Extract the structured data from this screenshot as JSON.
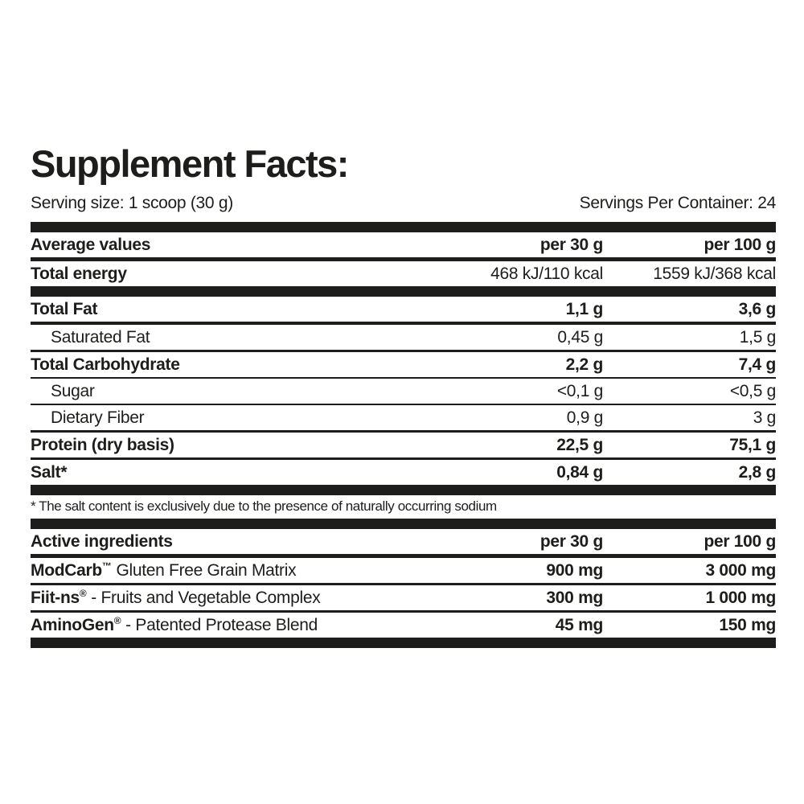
{
  "label": {
    "title": "Supplement Facts:",
    "serving_size": "Serving size: 1 scoop (30 g)",
    "servings_per_container": "Servings Per Container: 24",
    "footnote": "* The salt content is exclusively due to the presence of naturally occurring sodium",
    "text_color": "#1d1d1b"
  },
  "nutrition_table": {
    "header": {
      "label": "Average values",
      "col_30g": "per 30 g",
      "col_100g": "per 100 g"
    },
    "rows": [
      {
        "label": "Total energy",
        "style": "main",
        "bold_values": false,
        "per_30g": "468 kJ/110 kcal",
        "per_100g": "1559 kJ/368 kcal",
        "separator_after": "heavy"
      },
      {
        "label": "Total Fat",
        "style": "main",
        "bold_values": true,
        "per_30g": "1,1 g",
        "per_100g": "3,6 g",
        "separator_after": "strong"
      },
      {
        "label": "Saturated Fat",
        "style": "sub",
        "bold_values": false,
        "per_30g": "0,45 g",
        "per_100g": "1,5 g",
        "separator_after": "medium"
      },
      {
        "label": "Total Carbohydrate",
        "style": "main",
        "bold_values": true,
        "per_30g": "2,2 g",
        "per_100g": "7,4 g",
        "separator_after": "light"
      },
      {
        "label": "Sugar",
        "style": "sub",
        "bold_values": false,
        "per_30g": "<0,1 g",
        "per_100g": "<0,5 g",
        "separator_after": "light"
      },
      {
        "label": "Dietary Fiber",
        "style": "sub",
        "bold_values": false,
        "per_30g": "0,9 g",
        "per_100g": "3 g",
        "separator_after": "medium"
      },
      {
        "label": "Protein (dry basis)",
        "style": "main",
        "bold_values": true,
        "per_30g": "22,5 g",
        "per_100g": "75,1 g",
        "separator_after": "medium"
      },
      {
        "label": "Salt*",
        "style": "main",
        "bold_values": true,
        "per_30g": "0,84 g",
        "per_100g": "2,8 g",
        "separator_after": "heavy"
      }
    ]
  },
  "active_table": {
    "header": {
      "label": "Active ingredients",
      "col_30g": "per 30 g",
      "col_100g": "per 100 g"
    },
    "rows": [
      {
        "brand": "ModCarb",
        "mark": "™",
        "desc": " Gluten Free Grain Matrix",
        "per_30g": "900 mg",
        "per_100g": "3 000 mg",
        "separator_after": "medium"
      },
      {
        "brand": "Fiit-ns",
        "mark": "®",
        "desc": " - Fruits and Vegetable Complex",
        "per_30g": "300 mg",
        "per_100g": "1 000 mg",
        "separator_after": "medium"
      },
      {
        "brand": "AminoGen",
        "mark": "®",
        "desc": " - Patented Protease Blend",
        "per_30g": "45 mg",
        "per_100g": "150 mg",
        "separator_after": "heavy"
      }
    ]
  }
}
